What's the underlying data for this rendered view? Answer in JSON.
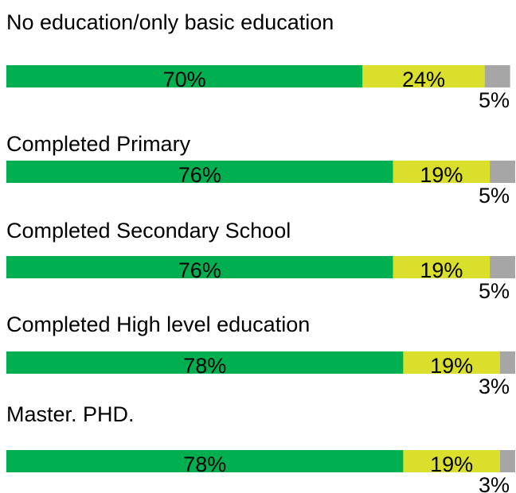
{
  "chart_data": {
    "type": "stacked-bar-horizontal",
    "categories": [
      "No education/only basic education",
      "Completed Primary",
      "Completed Secondary School",
      "Completed High level education",
      "Master. PHD."
    ],
    "xlim": [
      0,
      100
    ],
    "series": [
      {
        "color": "#00b050",
        "values": [
          70,
          76,
          76,
          78,
          78
        ],
        "value_labels": [
          "70%",
          "76%",
          "76%",
          "78%",
          "78%"
        ]
      },
      {
        "color": "#d9df2a",
        "values": [
          24,
          19,
          19,
          19,
          19
        ],
        "value_labels": [
          "24%",
          "19%",
          "19%",
          "19%",
          "19%"
        ]
      },
      {
        "color": "#a6a6a6",
        "values": [
          5,
          5,
          5,
          3,
          3
        ],
        "value_labels": [
          "5%",
          "5%",
          "5%",
          "3%",
          "3%"
        ]
      }
    ]
  }
}
